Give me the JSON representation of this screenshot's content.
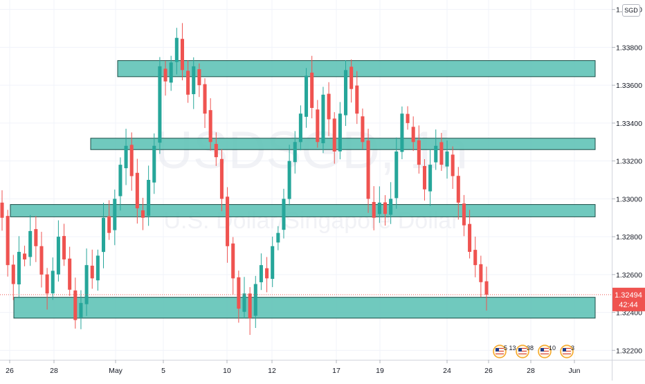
{
  "watermark": {
    "symbol": "USDSGD, 1h",
    "description": "U.S. Dollar/Singapore Dollar"
  },
  "currency_button": "SGD",
  "price_label": {
    "price": "1.32494",
    "countdown": "42:44"
  },
  "colors": {
    "up": "#26a69a",
    "down": "#ef5350",
    "zone_fill": "#5cc2b5",
    "zone_stroke": "#1a4d46",
    "price_label": "#ef5350",
    "grid": "#f0f3fa"
  },
  "events": [
    {
      "label": "5 13",
      "icon": "us-flag-icon"
    },
    {
      "label": "38",
      "icon": "us-flag-icon"
    },
    {
      "label": "10",
      "icon": "us-flag-icon"
    },
    {
      "label": "3",
      "icon": "us-flag-icon"
    }
  ],
  "chart_data": {
    "type": "candlestick",
    "symbol": "USDSGD",
    "interval": "1h",
    "y_ticks": [
      "1.34000",
      "1.33800",
      "1.33600",
      "1.33400",
      "1.33200",
      "1.33000",
      "1.32800",
      "1.32600",
      "1.32400",
      "1.32200"
    ],
    "x_ticks": [
      "26",
      "28",
      "May",
      "5",
      "10",
      "12",
      "17",
      "19",
      "24",
      "26",
      "28",
      "Jun"
    ],
    "ylim": [
      1.3215,
      1.3405
    ],
    "last_price": 1.32494,
    "zones": [
      {
        "from": 1.33645,
        "to": 1.3373
      },
      {
        "from": 1.3326,
        "to": 1.3332
      },
      {
        "from": 1.32905,
        "to": 1.3297
      },
      {
        "from": 1.3237,
        "to": 1.3248
      }
    ],
    "series": [
      {
        "values": [
          1.329,
          1.3265,
          1.3255,
          1.3272,
          1.3268,
          1.3283,
          1.3275,
          1.326,
          1.325,
          1.3262,
          1.328,
          1.3268,
          1.3252,
          1.3236,
          1.3245,
          1.3265,
          1.3258,
          1.327,
          1.329,
          1.3282,
          1.33,
          1.3318,
          1.3328,
          1.3312,
          1.3295,
          1.329,
          1.331,
          1.3328,
          1.337,
          1.3362,
          1.3372,
          1.3385,
          1.3368,
          1.3355,
          1.337,
          1.336,
          1.3345,
          1.333,
          1.3322,
          1.33,
          1.3275,
          1.3258,
          1.3242,
          1.325,
          1.3237,
          1.3255,
          1.3265,
          1.3258,
          1.3275,
          1.3282,
          1.33,
          1.332,
          1.333,
          1.3345,
          1.3365,
          1.3348,
          1.333,
          1.3355,
          1.3342,
          1.3325,
          1.3345,
          1.3368,
          1.3358,
          1.3345,
          1.333,
          1.33,
          1.329,
          1.3298,
          1.3292,
          1.33,
          1.3325,
          1.3345,
          1.334,
          1.333,
          1.3318,
          1.3305,
          1.3318,
          1.3328,
          1.3318,
          1.3325,
          1.3312,
          1.3298,
          1.3286,
          1.3272,
          1.3265,
          1.3256,
          1.32494
        ]
      }
    ]
  }
}
